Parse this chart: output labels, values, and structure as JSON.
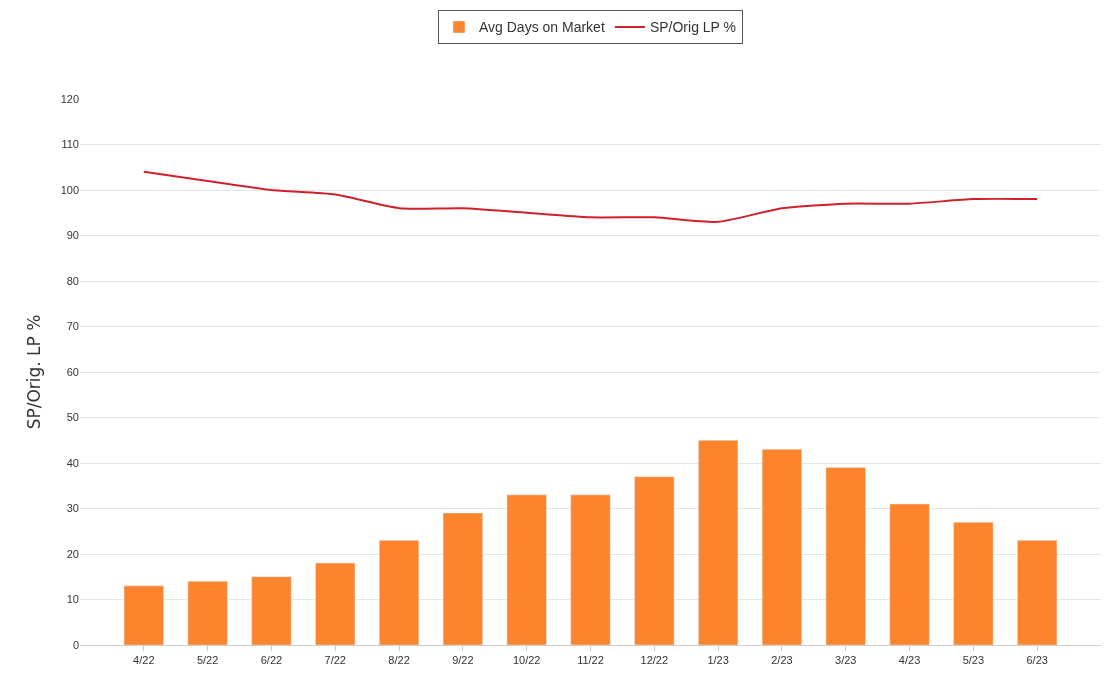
{
  "chart_data": {
    "type": "bar",
    "ylabel": "SP/Orig. LP %",
    "categories": [
      "4/22",
      "5/22",
      "6/22",
      "7/22",
      "8/22",
      "9/22",
      "10/22",
      "11/22",
      "12/22",
      "1/23",
      "2/23",
      "3/23",
      "4/23",
      "5/23",
      "6/23"
    ],
    "series": [
      {
        "name": "Avg Days on Market",
        "color": "#fb842c",
        "values": [
          13,
          14,
          15,
          18,
          23,
          29,
          33,
          33,
          37,
          45,
          43,
          39,
          31,
          27,
          23
        ]
      },
      {
        "name": "SP/Orig LP %",
        "type": "line",
        "color": "#d0212a",
        "values": [
          104,
          102,
          100,
          99,
          96,
          96,
          95,
          94,
          94,
          93,
          96,
          97,
          97,
          98,
          98
        ]
      }
    ],
    "ylim": [
      0,
      120
    ],
    "yticks": [
      0,
      10,
      20,
      30,
      40,
      50,
      60,
      70,
      80,
      90,
      100,
      110,
      120
    ],
    "grid": "y",
    "legend": "top",
    "marker": "none",
    "line_style": "solid"
  }
}
